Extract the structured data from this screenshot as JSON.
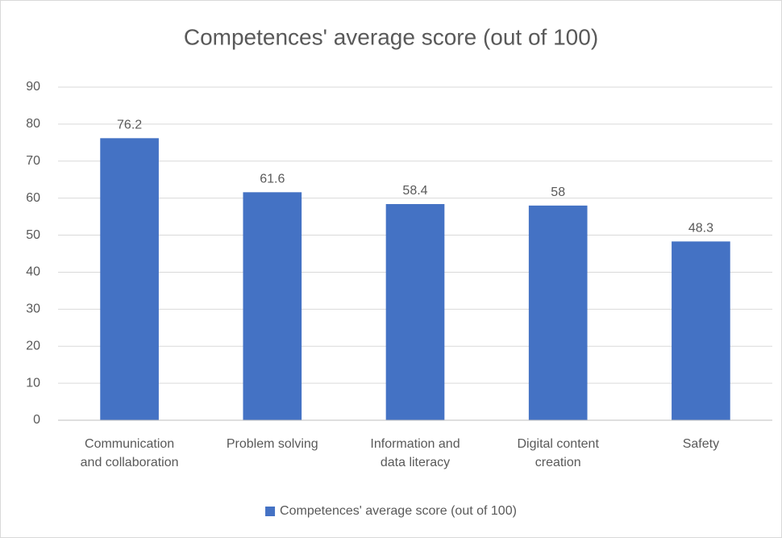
{
  "chart_data": {
    "type": "bar",
    "title": "Competences' average score (out of 100)",
    "categories": [
      "Communication and collaboration",
      "Problem solving",
      "Information and data literacy",
      "Digital content creation",
      "Safety"
    ],
    "series": [
      {
        "name": "Competences' average score (out of 100)",
        "color": "#4472c4",
        "values": [
          76.2,
          61.6,
          58.4,
          58,
          48.3
        ]
      }
    ],
    "ylim": [
      0,
      90
    ],
    "yticks": [
      0,
      10,
      20,
      30,
      40,
      50,
      60,
      70,
      80,
      90
    ],
    "grid": true,
    "legend": "bottom"
  }
}
